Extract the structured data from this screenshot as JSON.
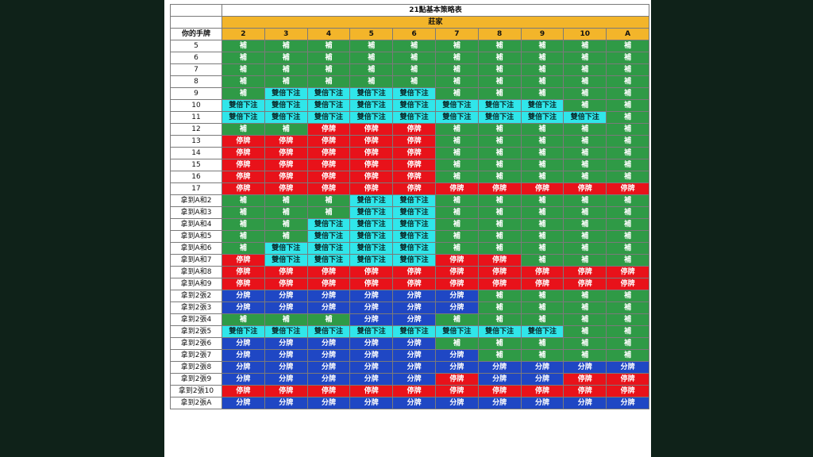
{
  "title": "21點基本策略表",
  "dealer_label": "莊家",
  "hand_header": "你的手牌",
  "dealer_cards": [
    "2",
    "3",
    "4",
    "5",
    "6",
    "7",
    "8",
    "9",
    "10",
    "A"
  ],
  "actions": {
    "H": "補",
    "S": "停牌",
    "D": "雙倍下注",
    "P": "分牌"
  },
  "colors": {
    "H": "#2f9a46",
    "S": "#e8121a",
    "D": "#30e6ea",
    "P": "#1f47c4",
    "header": "#f3b52a"
  },
  "rows": [
    {
      "hand": "5",
      "cells": [
        "H",
        "H",
        "H",
        "H",
        "H",
        "H",
        "H",
        "H",
        "H",
        "H"
      ]
    },
    {
      "hand": "6",
      "cells": [
        "H",
        "H",
        "H",
        "H",
        "H",
        "H",
        "H",
        "H",
        "H",
        "H"
      ]
    },
    {
      "hand": "7",
      "cells": [
        "H",
        "H",
        "H",
        "H",
        "H",
        "H",
        "H",
        "H",
        "H",
        "H"
      ]
    },
    {
      "hand": "8",
      "cells": [
        "H",
        "H",
        "H",
        "H",
        "H",
        "H",
        "H",
        "H",
        "H",
        "H"
      ]
    },
    {
      "hand": "9",
      "cells": [
        "H",
        "D",
        "D",
        "D",
        "D",
        "H",
        "H",
        "H",
        "H",
        "H"
      ]
    },
    {
      "hand": "10",
      "cells": [
        "D",
        "D",
        "D",
        "D",
        "D",
        "D",
        "D",
        "D",
        "H",
        "H"
      ]
    },
    {
      "hand": "11",
      "cells": [
        "D",
        "D",
        "D",
        "D",
        "D",
        "D",
        "D",
        "D",
        "D",
        "H"
      ]
    },
    {
      "hand": "12",
      "cells": [
        "H",
        "H",
        "S",
        "S",
        "S",
        "H",
        "H",
        "H",
        "H",
        "H"
      ]
    },
    {
      "hand": "13",
      "cells": [
        "S",
        "S",
        "S",
        "S",
        "S",
        "H",
        "H",
        "H",
        "H",
        "H"
      ]
    },
    {
      "hand": "14",
      "cells": [
        "S",
        "S",
        "S",
        "S",
        "S",
        "H",
        "H",
        "H",
        "H",
        "H"
      ]
    },
    {
      "hand": "15",
      "cells": [
        "S",
        "S",
        "S",
        "S",
        "S",
        "H",
        "H",
        "H",
        "H",
        "H"
      ]
    },
    {
      "hand": "16",
      "cells": [
        "S",
        "S",
        "S",
        "S",
        "S",
        "H",
        "H",
        "H",
        "H",
        "H"
      ]
    },
    {
      "hand": "17",
      "cells": [
        "S",
        "S",
        "S",
        "S",
        "S",
        "S",
        "S",
        "S",
        "S",
        "S"
      ]
    },
    {
      "hand": "拿到A和2",
      "cells": [
        "H",
        "H",
        "H",
        "D",
        "D",
        "H",
        "H",
        "H",
        "H",
        "H"
      ]
    },
    {
      "hand": "拿到A和3",
      "cells": [
        "H",
        "H",
        "H",
        "D",
        "D",
        "H",
        "H",
        "H",
        "H",
        "H"
      ]
    },
    {
      "hand": "拿到A和4",
      "cells": [
        "H",
        "H",
        "D",
        "D",
        "D",
        "H",
        "H",
        "H",
        "H",
        "H"
      ]
    },
    {
      "hand": "拿到A和5",
      "cells": [
        "H",
        "H",
        "D",
        "D",
        "D",
        "H",
        "H",
        "H",
        "H",
        "H"
      ]
    },
    {
      "hand": "拿到A和6",
      "cells": [
        "H",
        "D",
        "D",
        "D",
        "D",
        "H",
        "H",
        "H",
        "H",
        "H"
      ]
    },
    {
      "hand": "拿到A和7",
      "cells": [
        "S",
        "D",
        "D",
        "D",
        "D",
        "S",
        "S",
        "H",
        "H",
        "H"
      ]
    },
    {
      "hand": "拿到A和8",
      "cells": [
        "S",
        "S",
        "S",
        "S",
        "S",
        "S",
        "S",
        "S",
        "S",
        "S"
      ]
    },
    {
      "hand": "拿到A和9",
      "cells": [
        "S",
        "S",
        "S",
        "S",
        "S",
        "S",
        "S",
        "S",
        "S",
        "S"
      ]
    },
    {
      "hand": "拿到2張2",
      "cells": [
        "P",
        "P",
        "P",
        "P",
        "P",
        "P",
        "H",
        "H",
        "H",
        "H"
      ]
    },
    {
      "hand": "拿到2張3",
      "cells": [
        "P",
        "P",
        "P",
        "P",
        "P",
        "P",
        "H",
        "H",
        "H",
        "H"
      ]
    },
    {
      "hand": "拿到2張4",
      "cells": [
        "H",
        "H",
        "H",
        "P",
        "P",
        "H",
        "H",
        "H",
        "H",
        "H"
      ]
    },
    {
      "hand": "拿到2張5",
      "cells": [
        "D",
        "D",
        "D",
        "D",
        "D",
        "D",
        "D",
        "D",
        "H",
        "H"
      ]
    },
    {
      "hand": "拿到2張6",
      "cells": [
        "P",
        "P",
        "P",
        "P",
        "P",
        "H",
        "H",
        "H",
        "H",
        "H"
      ]
    },
    {
      "hand": "拿到2張7",
      "cells": [
        "P",
        "P",
        "P",
        "P",
        "P",
        "P",
        "H",
        "H",
        "H",
        "H"
      ]
    },
    {
      "hand": "拿到2張8",
      "cells": [
        "P",
        "P",
        "P",
        "P",
        "P",
        "P",
        "P",
        "P",
        "P",
        "P"
      ]
    },
    {
      "hand": "拿到2張9",
      "cells": [
        "P",
        "P",
        "P",
        "P",
        "P",
        "S",
        "P",
        "P",
        "S",
        "S"
      ]
    },
    {
      "hand": "拿到2張10",
      "cells": [
        "S",
        "S",
        "S",
        "S",
        "S",
        "S",
        "S",
        "S",
        "S",
        "S"
      ]
    },
    {
      "hand": "拿到2張A",
      "cells": [
        "P",
        "P",
        "P",
        "P",
        "P",
        "P",
        "P",
        "P",
        "P",
        "P"
      ]
    }
  ]
}
